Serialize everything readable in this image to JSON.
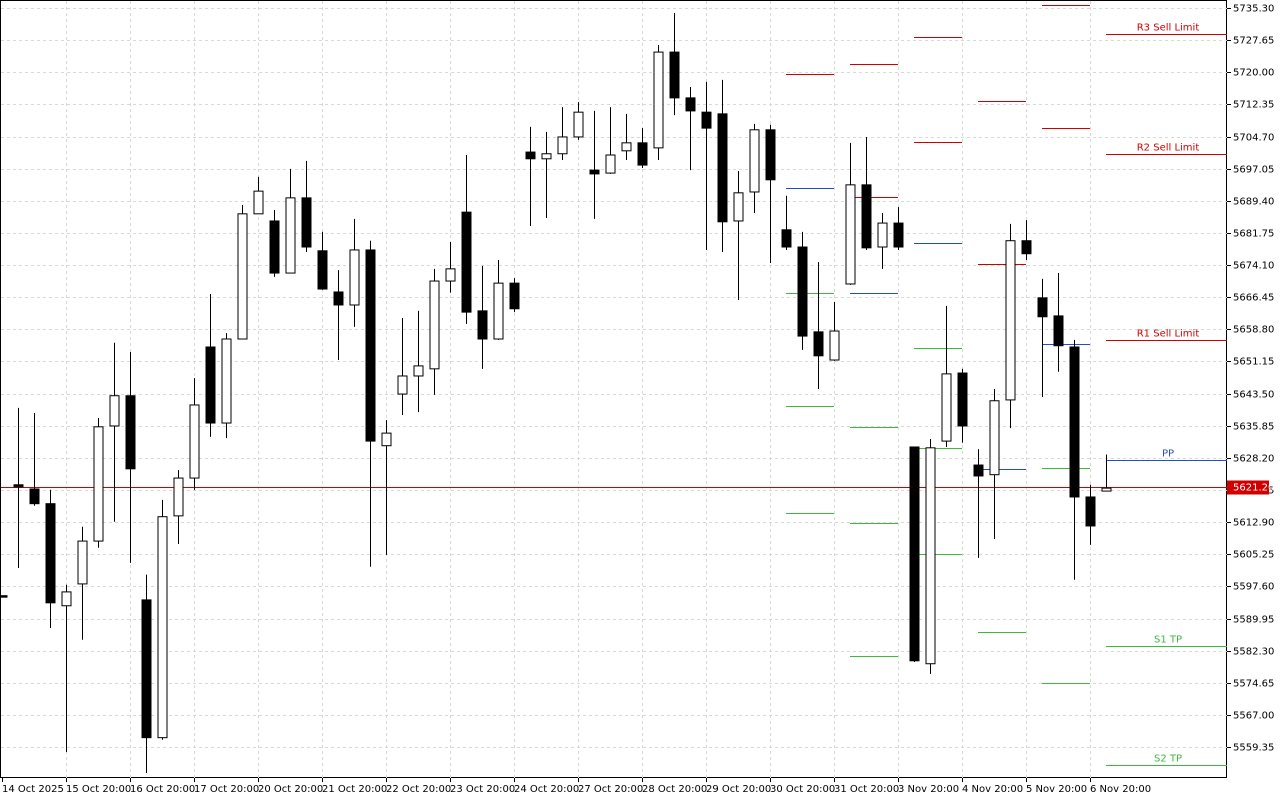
{
  "chart_data": {
    "type": "candlestick",
    "categories": [
      "14 Oct 2025",
      null,
      null,
      null,
      "15 Oct 20:00",
      null,
      null,
      null,
      "16 Oct 20:00",
      null,
      null,
      null,
      "17 Oct 20:00",
      null,
      null,
      null,
      "20 Oct 20:00",
      null,
      null,
      null,
      "21 Oct 20:00",
      null,
      null,
      null,
      "22 Oct 20:00",
      null,
      null,
      null,
      "23 Oct 20:00",
      null,
      null,
      null,
      "24 Oct 20:00",
      null,
      null,
      null,
      "27 Oct 20:00",
      null,
      null,
      null,
      "28 Oct 20:00",
      null,
      null,
      null,
      "29 Oct 20:00",
      null,
      null,
      null,
      "30 Oct 20:00",
      null,
      null,
      null,
      "31 Oct 20:00",
      null,
      null,
      null,
      "3 Nov 20:00",
      null,
      null,
      null,
      "4 Nov 20:00",
      null,
      null,
      null,
      "5 Nov 20:00",
      null,
      null,
      null,
      "6 Nov 20:00",
      null
    ],
    "open": [
      5595.4,
      5621.8,
      5620.8,
      5617.3,
      5593.0,
      5598.2,
      5608.4,
      5635.8,
      5643.0,
      5594.4,
      5561.6,
      5614.4,
      5623.4,
      5654.6,
      5636.5,
      5656.5,
      5686.3,
      5684.6,
      5672.2,
      5690.1,
      5677.5,
      5667.7,
      5664.6,
      5677.7,
      5631.1,
      5643.4,
      5647.7,
      5649.4,
      5670.3,
      5686.7,
      5663.2,
      5656.5,
      5669.8,
      5701.0,
      5699.4,
      5700.6,
      5704.6,
      5696.7,
      5696.0,
      5701.3,
      5703.2,
      5702.0,
      5724.8,
      5713.9,
      5710.5,
      5710.1,
      5684.6,
      5691.5,
      5706.3,
      5682.5,
      5678.4,
      5658.2,
      5651.5,
      5669.6,
      5693.2,
      5678.4,
      5684.1,
      5630.8,
      5579.2,
      5632.2,
      5648.4,
      5626.5,
      5624.2,
      5642.0,
      5679.9,
      5666.3,
      5662.0,
      5654.6,
      5618.9,
      5620.3
    ],
    "high": [
      5595.4,
      5640.1,
      5638.9,
      5620.6,
      5598.0,
      5611.8,
      5637.7,
      5655.6,
      5653.4,
      5600.4,
      5618.2,
      5625.3,
      5647.2,
      5667.2,
      5657.9,
      5688.4,
      5695.1,
      5687.2,
      5697.0,
      5698.9,
      5682.0,
      5672.9,
      5685.1,
      5679.9,
      5637.2,
      5661.5,
      5663.2,
      5673.2,
      5679.6,
      5700.3,
      5673.9,
      5675.3,
      5671.0,
      5707.0,
      5705.8,
      5711.7,
      5712.9,
      5710.8,
      5711.7,
      5710.1,
      5706.7,
      5726.5,
      5734.1,
      5716.5,
      5717.7,
      5718.2,
      5696.5,
      5707.7,
      5707.5,
      5690.6,
      5682.0,
      5674.8,
      5665.3,
      5703.2,
      5704.6,
      5686.5,
      5687.9,
      5630.8,
      5632.7,
      5664.4,
      5649.4,
      5630.3,
      5644.6,
      5683.9,
      5684.8,
      5670.8,
      5672.2,
      5656.3,
      5621.8,
      5629.0
    ],
    "low": [
      5595.4,
      5602.0,
      5616.8,
      5587.7,
      5558.2,
      5584.9,
      5606.8,
      5613.0,
      5603.2,
      5553.2,
      5561.1,
      5607.7,
      5620.6,
      5633.2,
      5632.9,
      5656.5,
      5686.3,
      5671.3,
      5672.2,
      5677.2,
      5668.2,
      5651.5,
      5659.4,
      5602.3,
      5605.1,
      5638.4,
      5639.1,
      5643.2,
      5667.5,
      5660.1,
      5649.4,
      5656.3,
      5662.9,
      5683.4,
      5685.3,
      5699.1,
      5703.9,
      5685.1,
      5695.8,
      5699.1,
      5697.2,
      5699.1,
      5709.8,
      5696.7,
      5677.7,
      5677.2,
      5665.8,
      5686.5,
      5674.6,
      5677.7,
      5653.9,
      5644.6,
      5651.3,
      5669.4,
      5677.7,
      5673.2,
      5677.7,
      5579.6,
      5576.8,
      5630.8,
      5631.8,
      5604.4,
      5608.9,
      5635.3,
      5675.3,
      5642.7,
      5648.7,
      5599.2,
      5607.5,
      5620.3
    ],
    "close": [
      5595.4,
      5621.3,
      5617.3,
      5593.7,
      5596.3,
      5608.4,
      5635.6,
      5643.0,
      5625.6,
      5561.6,
      5614.2,
      5623.4,
      5640.8,
      5636.5,
      5656.5,
      5686.3,
      5691.7,
      5672.2,
      5690.1,
      5678.4,
      5668.4,
      5664.6,
      5677.7,
      5632.2,
      5634.1,
      5647.7,
      5650.1,
      5670.3,
      5673.2,
      5662.9,
      5656.5,
      5669.8,
      5663.7,
      5699.4,
      5700.6,
      5704.6,
      5710.5,
      5695.8,
      5700.3,
      5703.2,
      5697.9,
      5724.8,
      5713.9,
      5710.8,
      5706.7,
      5684.4,
      5691.3,
      5706.3,
      5694.4,
      5678.4,
      5657.2,
      5652.5,
      5658.4,
      5693.2,
      5678.2,
      5684.1,
      5678.4,
      5579.9,
      5630.6,
      5648.2,
      5635.8,
      5623.9,
      5641.8,
      5679.9,
      5676.8,
      5661.8,
      5654.9,
      5618.9,
      5612.0,
      5621.0
    ],
    "up_color": "#ffffff",
    "down_color": "#000000",
    "ylim": [
      5552.0,
      5737.2
    ],
    "yticks": [
      5559.35,
      {
        "value": 5567.0,
        "label": "5567.00"
      },
      5574.65,
      {
        "value": 5582.3,
        "label": "5582.30"
      },
      5589.95,
      {
        "value": 5597.6,
        "label": "5597.60"
      },
      5605.25,
      {
        "value": 5612.9,
        "label": "5612.90"
      },
      5620.55,
      {
        "value": 5628.2,
        "label": "5628.20"
      },
      5635.85,
      {
        "value": 5643.5,
        "label": "5643.50"
      },
      5651.15,
      {
        "value": 5658.8,
        "label": "5658.80"
      },
      5666.45,
      {
        "value": 5674.1,
        "label": "5674.10"
      },
      5681.75,
      {
        "value": 5689.4,
        "label": "5689.40"
      },
      5697.05,
      {
        "value": 5704.7,
        "label": "5704.70"
      },
      5712.35,
      {
        "value": 5720.0,
        "label": "5720.00"
      },
      5727.65,
      {
        "value": 5735.3,
        "label": "5735.30"
      }
    ],
    "grid": true,
    "current_price": {
      "value": 5621.2,
      "label": "5621.20",
      "color": "#d00000"
    },
    "pivot_levels": [
      {
        "start": 49,
        "end": 52,
        "levels": [
          {
            "value": 5719.6,
            "color": "#d00000"
          },
          {
            "value": 5692.5,
            "color": "#1f4fc8"
          },
          {
            "value": 5667.5,
            "color": "#3cb83c"
          },
          {
            "value": 5640.5,
            "color": "#3cb83c"
          },
          {
            "value": 5615.1,
            "color": "#3cb83c"
          }
        ]
      },
      {
        "start": 53,
        "end": 56,
        "levels": [
          {
            "value": 5722.0,
            "color": "#d00000"
          },
          {
            "value": 5690.3,
            "color": "#d00000"
          },
          {
            "value": 5667.5,
            "color": "#1f4fc8"
          },
          {
            "value": 5635.6,
            "color": "#3cb83c"
          },
          {
            "value": 5612.7,
            "color": "#3cb83c"
          },
          {
            "value": 5581.1,
            "color": "#3cb83c"
          }
        ]
      },
      {
        "start": 57,
        "end": 60,
        "levels": [
          {
            "value": 5728.4,
            "color": "#d00000"
          },
          {
            "value": 5703.4,
            "color": "#d00000"
          },
          {
            "value": 5679.4,
            "color": "#1f4fc8"
          },
          {
            "value": 5654.4,
            "color": "#3cb83c"
          },
          {
            "value": 5630.6,
            "color": "#3cb83c"
          },
          {
            "value": 5605.4,
            "color": "#3cb83c"
          }
        ]
      },
      {
        "start": 61,
        "end": 64,
        "levels": [
          {
            "value": 5713.2,
            "color": "#d00000"
          },
          {
            "value": 5674.4,
            "color": "#d00000"
          },
          {
            "value": 5625.6,
            "color": "#1f4fc8"
          },
          {
            "value": 5586.8,
            "color": "#3cb83c"
          }
        ]
      },
      {
        "start": 65,
        "end": 68,
        "levels": [
          {
            "value": 5736.0,
            "color": "#d00000"
          },
          {
            "value": 5706.7,
            "color": "#d00000"
          },
          {
            "value": 5655.3,
            "color": "#1f4fc8"
          },
          {
            "value": 5625.8,
            "color": "#3cb83c"
          },
          {
            "value": 5574.6,
            "color": "#3cb83c"
          }
        ]
      },
      {
        "start": 69,
        "levels": [
          {
            "label": "R3 Sell Limit",
            "value": 5729.1,
            "color": "#d00000"
          },
          {
            "label": "R2 Sell Limit",
            "value": 5700.6,
            "color": "#d00000"
          },
          {
            "label": "R1 Sell Limit",
            "value": 5656.3,
            "color": "#d00000"
          },
          {
            "label": "PP",
            "value": 5627.7,
            "color": "#1f4fc8"
          },
          {
            "label": "S1 TP",
            "value": 5583.5,
            "color": "#3cb83c"
          },
          {
            "label": "S2 TP",
            "value": 5555.1,
            "color": "#3cb83c"
          }
        ]
      }
    ]
  }
}
